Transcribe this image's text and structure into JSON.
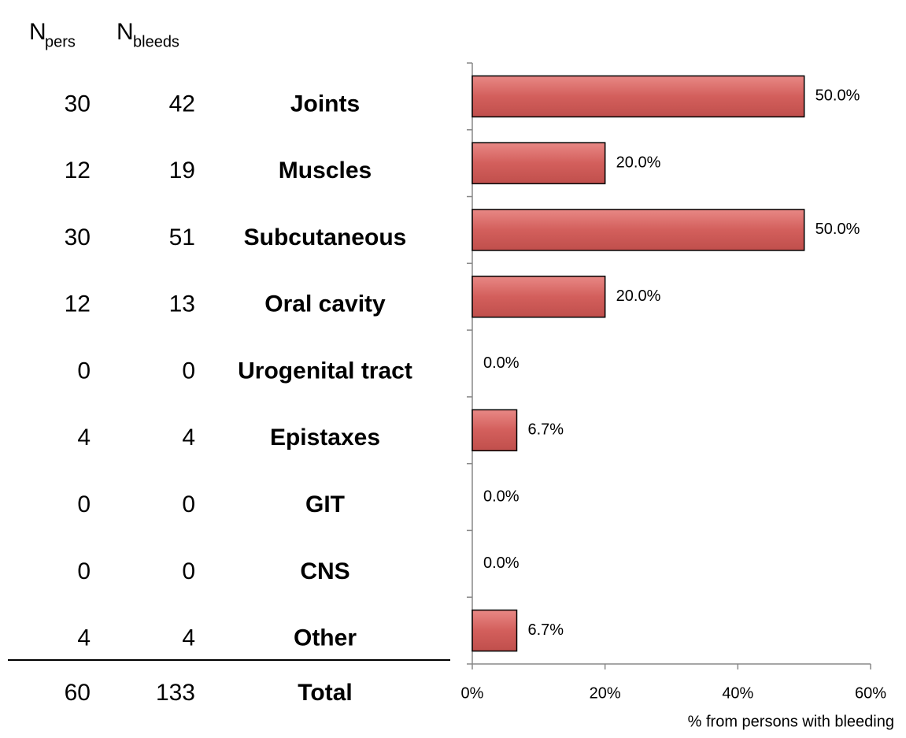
{
  "chart_data": {
    "type": "bar",
    "categories": [
      "Joints",
      "Muscles",
      "Subcutaneous",
      "Oral cavity",
      "Urogenital tract",
      "Epistaxes",
      "GIT",
      "CNS",
      "Other"
    ],
    "values": [
      50,
      20,
      50,
      20,
      0,
      6.7,
      0,
      0,
      6.7
    ],
    "value_labels": [
      "50.0%",
      "20.0%",
      "50.0%",
      "20.0%",
      "0.0%",
      "6.7%",
      "0.0%",
      "0.0%",
      "6.7%"
    ],
    "color": "#d35f5c",
    "xlim": [
      0,
      60
    ],
    "xticks": [
      {
        "value": 0,
        "label": "0%"
      },
      {
        "value": 20,
        "label": "20%"
      },
      {
        "value": 40,
        "label": "40%"
      },
      {
        "value": 60,
        "label": "60%"
      }
    ],
    "xlabel": "% from persons with bleeding",
    "table": {
      "headers": [
        {
          "main": "N",
          "sub": "pers"
        },
        {
          "main": "N",
          "sub": "bleeds"
        }
      ],
      "n_pers": [
        30,
        12,
        30,
        12,
        0,
        4,
        0,
        0,
        4
      ],
      "n_bleeds": [
        42,
        19,
        51,
        13,
        0,
        4,
        0,
        0,
        4
      ],
      "total": {
        "label": "Total",
        "n_pers": 60,
        "n_bleeds": 133
      }
    }
  }
}
